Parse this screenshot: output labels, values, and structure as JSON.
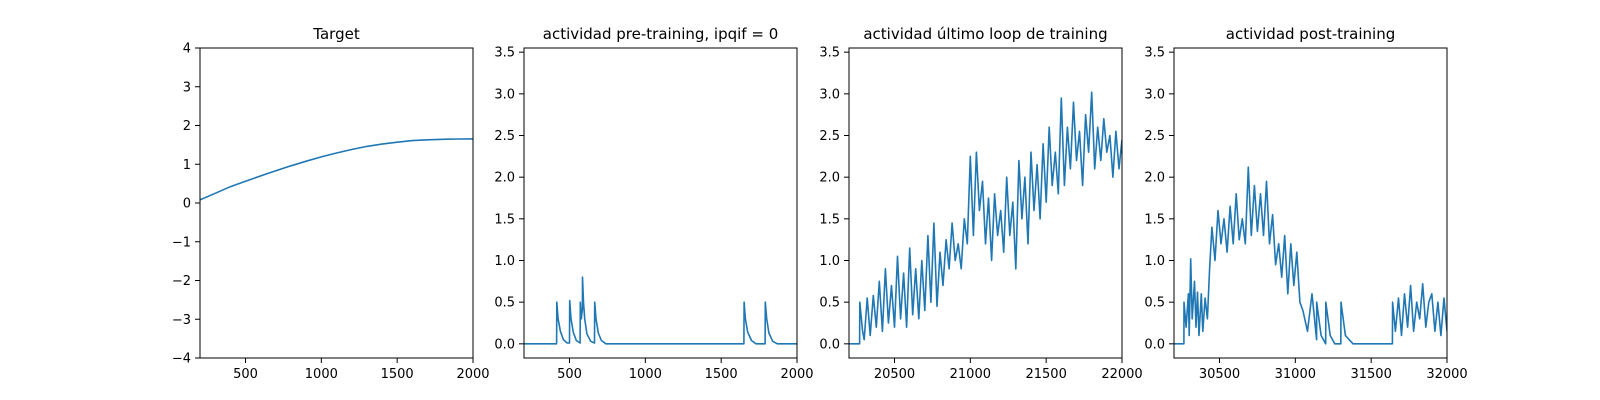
{
  "chart_data": [
    {
      "type": "line",
      "title": "Target",
      "xlim": [
        200,
        2000
      ],
      "ylim": [
        -4,
        4
      ],
      "xticks": [
        500,
        1000,
        1500,
        2000
      ],
      "yticks": [
        -4,
        -3,
        -2,
        -1,
        0,
        1,
        2,
        3,
        4
      ],
      "series": [
        {
          "x": [
            200,
            300,
            400,
            500,
            600,
            700,
            800,
            900,
            1000,
            1100,
            1200,
            1300,
            1400,
            1500,
            1600,
            1700,
            1800,
            1900,
            2000
          ],
          "y": [
            0.08,
            0.25,
            0.42,
            0.56,
            0.7,
            0.83,
            0.96,
            1.08,
            1.19,
            1.29,
            1.38,
            1.46,
            1.52,
            1.57,
            1.61,
            1.63,
            1.645,
            1.652,
            1.655
          ]
        }
      ]
    },
    {
      "type": "line",
      "title": "actividad pre-training, ipqif = 0",
      "xlim": [
        200,
        2000
      ],
      "ylim": [
        -0.17,
        3.55
      ],
      "xticks": [
        500,
        1000,
        1500,
        2000
      ],
      "yticks": [
        0.0,
        0.5,
        1.0,
        1.5,
        2.0,
        2.5,
        3.0,
        3.5
      ],
      "series": [
        {
          "x": [
            200,
            415,
            416,
            425,
            440,
            460,
            485,
            500,
            501,
            510,
            525,
            545,
            570,
            571,
            578,
            585,
            586,
            592,
            600,
            615,
            640,
            665,
            666,
            675,
            690,
            710,
            740,
            1650,
            1651,
            1660,
            1675,
            1700,
            1730,
            1790,
            1791,
            1800,
            1815,
            1840,
            1870,
            2000
          ],
          "y": [
            0.0,
            0.0,
            0.5,
            0.3,
            0.15,
            0.05,
            0.01,
            0.01,
            0.52,
            0.3,
            0.14,
            0.04,
            0.01,
            0.5,
            0.3,
            0.42,
            0.8,
            0.5,
            0.3,
            0.12,
            0.03,
            0.01,
            0.5,
            0.3,
            0.13,
            0.04,
            0.0,
            0.0,
            0.5,
            0.3,
            0.14,
            0.04,
            0.0,
            0.0,
            0.5,
            0.3,
            0.13,
            0.03,
            0.0,
            0.0
          ]
        }
      ]
    },
    {
      "type": "line",
      "title": "actividad último loop de training",
      "xlim": [
        20200,
        22000
      ],
      "ylim": [
        -0.17,
        3.55
      ],
      "xticks": [
        20500,
        21000,
        21500,
        22000
      ],
      "yticks": [
        0.0,
        0.5,
        1.0,
        1.5,
        2.0,
        2.5,
        3.0,
        3.5
      ],
      "series": [
        {
          "x": [
            20200,
            20270,
            20271,
            20290,
            20300,
            20320,
            20340,
            20360,
            20380,
            20400,
            20420,
            20440,
            20460,
            20480,
            20500,
            20520,
            20540,
            20560,
            20580,
            20600,
            20620,
            20640,
            20660,
            20680,
            20700,
            20720,
            20740,
            20760,
            20780,
            20800,
            20820,
            20840,
            20860,
            20880,
            20900,
            20920,
            20940,
            20960,
            20980,
            21000,
            21020,
            21040,
            21060,
            21080,
            21100,
            21120,
            21140,
            21160,
            21180,
            21200,
            21220,
            21240,
            21260,
            21280,
            21300,
            21320,
            21340,
            21360,
            21380,
            21400,
            21420,
            21440,
            21460,
            21480,
            21500,
            21520,
            21540,
            21560,
            21580,
            21600,
            21620,
            21640,
            21660,
            21680,
            21700,
            21720,
            21740,
            21760,
            21780,
            21800,
            21820,
            21840,
            21860,
            21880,
            21900,
            21920,
            21940,
            21960,
            21980,
            22000
          ],
          "y": [
            0.0,
            0.0,
            0.5,
            0.15,
            0.05,
            0.55,
            0.1,
            0.58,
            0.2,
            0.75,
            0.15,
            0.9,
            0.25,
            0.7,
            0.2,
            1.05,
            0.3,
            0.85,
            0.2,
            1.15,
            0.35,
            0.9,
            0.3,
            1.0,
            0.4,
            1.3,
            0.5,
            1.45,
            0.45,
            1.1,
            0.7,
            1.25,
            0.9,
            1.45,
            1.0,
            1.2,
            0.9,
            1.5,
            1.2,
            2.25,
            1.3,
            2.3,
            1.6,
            1.95,
            1.2,
            1.75,
            1.0,
            1.8,
            1.3,
            1.6,
            1.1,
            2.0,
            1.3,
            1.7,
            0.9,
            2.2,
            1.5,
            2.0,
            1.2,
            2.3,
            1.6,
            2.15,
            1.5,
            2.4,
            1.7,
            2.6,
            1.9,
            2.3,
            1.8,
            2.95,
            1.9,
            2.6,
            2.1,
            2.9,
            2.2,
            2.55,
            1.9,
            2.75,
            2.3,
            3.02,
            2.1,
            2.6,
            2.2,
            2.7,
            2.3,
            2.5,
            2.0,
            2.55,
            2.1,
            2.45
          ]
        }
      ]
    },
    {
      "type": "line",
      "title": "actividad post-training",
      "xlim": [
        30200,
        32000
      ],
      "ylim": [
        -0.17,
        3.55
      ],
      "xticks": [
        30500,
        31000,
        31500,
        32000
      ],
      "yticks": [
        0.0,
        0.5,
        1.0,
        1.5,
        2.0,
        2.5,
        3.0,
        3.5
      ],
      "series": [
        {
          "x": [
            30200,
            30265,
            30266,
            30280,
            30295,
            30300,
            30310,
            30320,
            30335,
            30345,
            30355,
            30365,
            30380,
            30390,
            30405,
            30420,
            30435,
            30450,
            30470,
            30490,
            30510,
            30530,
            30550,
            30570,
            30590,
            30610,
            30630,
            30650,
            30670,
            30690,
            30710,
            30730,
            30750,
            30770,
            30790,
            30810,
            30830,
            30850,
            30870,
            30890,
            30910,
            30930,
            30950,
            30970,
            30990,
            31010,
            31030,
            31050,
            31080,
            31110,
            31140,
            31141,
            31170,
            31200,
            31201,
            31230,
            31260,
            31300,
            31301,
            31330,
            31380,
            31640,
            31641,
            31660,
            31680,
            31700,
            31720,
            31740,
            31760,
            31780,
            31800,
            31820,
            31840,
            31860,
            31880,
            31900,
            31920,
            31940,
            31960,
            31980,
            32000
          ],
          "y": [
            0.0,
            0.0,
            0.5,
            0.2,
            0.6,
            0.1,
            1.02,
            0.3,
            0.75,
            0.2,
            0.62,
            0.1,
            0.6,
            0.15,
            0.55,
            0.3,
            0.9,
            1.4,
            1.0,
            1.6,
            1.2,
            1.5,
            1.1,
            1.65,
            1.2,
            1.8,
            1.25,
            1.5,
            1.2,
            2.12,
            1.3,
            1.9,
            1.35,
            1.8,
            1.3,
            1.95,
            1.2,
            1.55,
            0.95,
            1.2,
            0.8,
            1.3,
            0.6,
            1.2,
            0.7,
            1.1,
            0.5,
            0.4,
            0.15,
            0.6,
            0.05,
            0.5,
            0.1,
            0.0,
            0.5,
            0.1,
            0.0,
            0.0,
            0.5,
            0.1,
            0.0,
            0.0,
            0.5,
            0.15,
            0.55,
            0.1,
            0.6,
            0.2,
            0.7,
            0.15,
            0.5,
            0.3,
            0.72,
            0.2,
            0.5,
            0.6,
            0.15,
            0.5,
            0.1,
            0.55,
            0.15
          ]
        }
      ]
    }
  ],
  "style": {
    "line_color": "#1f77b4"
  }
}
